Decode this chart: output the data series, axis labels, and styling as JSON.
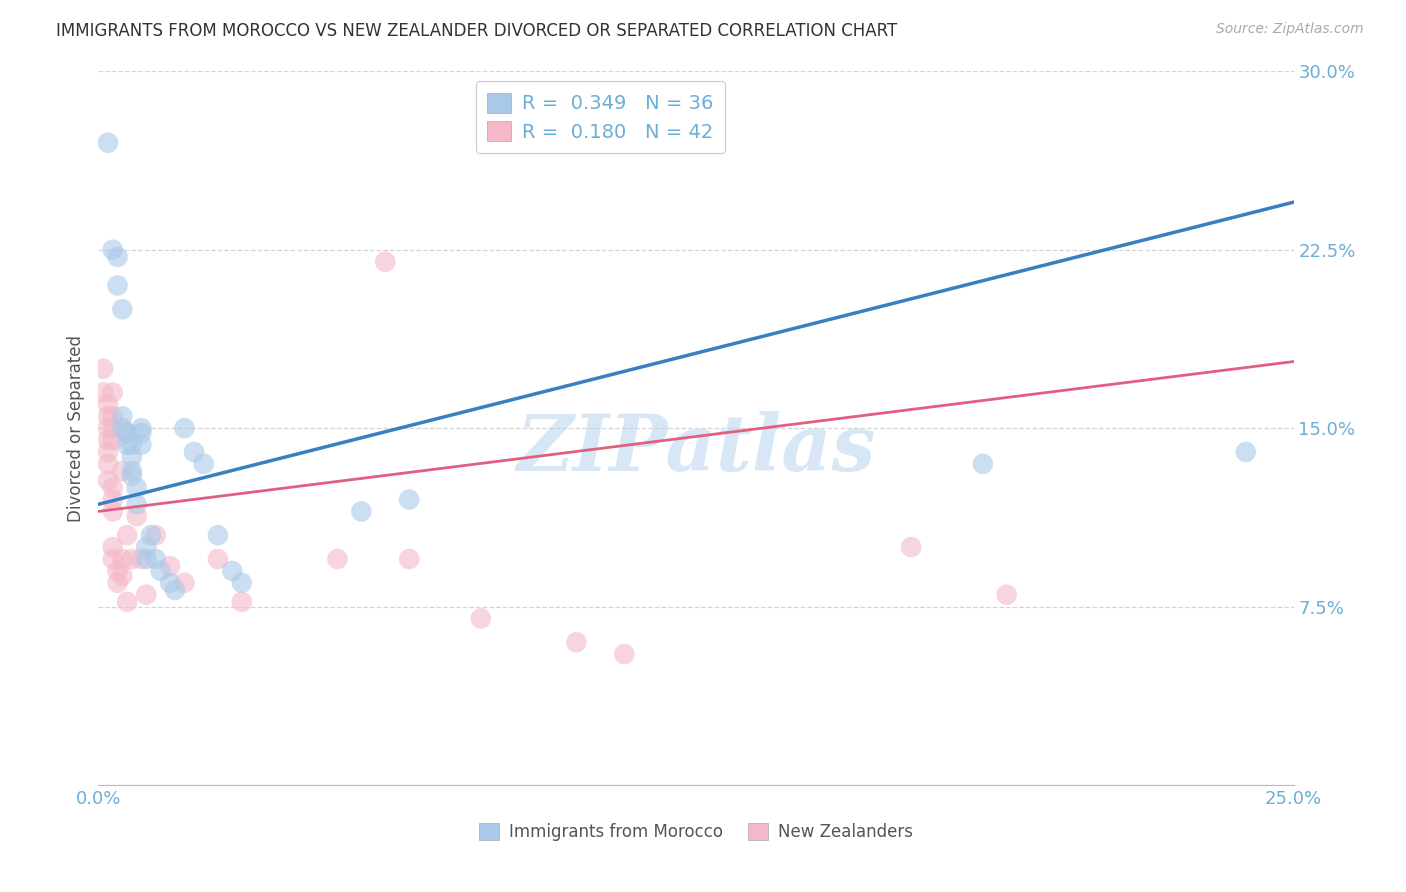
{
  "title": "IMMIGRANTS FROM MOROCCO VS NEW ZEALANDER DIVORCED OR SEPARATED CORRELATION CHART",
  "source": "Source: ZipAtlas.com",
  "ylabel_label": "Divorced or Separated",
  "xlim": [
    0.0,
    0.25
  ],
  "ylim": [
    0.0,
    0.3
  ],
  "xticks": [
    0.0,
    0.05,
    0.1,
    0.15,
    0.2,
    0.25
  ],
  "yticks": [
    0.0,
    0.075,
    0.15,
    0.225,
    0.3
  ],
  "background_color": "#ffffff",
  "grid_color": "#d0d0d0",
  "watermark": "ZIPatlas",
  "legend_entry1": {
    "R": "0.349",
    "N": "36"
  },
  "legend_entry2": {
    "R": "0.180",
    "N": "42"
  },
  "blue_color": "#aac9e8",
  "pink_color": "#f4b8c8",
  "blue_line_color": "#3a7fc1",
  "pink_line_color": "#e06080",
  "tick_color": "#6baed6",
  "blue_scatter": [
    [
      0.002,
      0.27
    ],
    [
      0.003,
      0.225
    ],
    [
      0.004,
      0.222
    ],
    [
      0.004,
      0.21
    ],
    [
      0.005,
      0.2
    ],
    [
      0.005,
      0.155
    ],
    [
      0.005,
      0.15
    ],
    [
      0.006,
      0.148
    ],
    [
      0.006,
      0.143
    ],
    [
      0.006,
      0.148
    ],
    [
      0.007,
      0.143
    ],
    [
      0.007,
      0.138
    ],
    [
      0.007,
      0.132
    ],
    [
      0.007,
      0.13
    ],
    [
      0.008,
      0.125
    ],
    [
      0.008,
      0.118
    ],
    [
      0.009,
      0.15
    ],
    [
      0.009,
      0.148
    ],
    [
      0.009,
      0.143
    ],
    [
      0.01,
      0.095
    ],
    [
      0.01,
      0.1
    ],
    [
      0.011,
      0.105
    ],
    [
      0.012,
      0.095
    ],
    [
      0.013,
      0.09
    ],
    [
      0.015,
      0.085
    ],
    [
      0.016,
      0.082
    ],
    [
      0.018,
      0.15
    ],
    [
      0.02,
      0.14
    ],
    [
      0.022,
      0.135
    ],
    [
      0.025,
      0.105
    ],
    [
      0.028,
      0.09
    ],
    [
      0.03,
      0.085
    ],
    [
      0.055,
      0.115
    ],
    [
      0.065,
      0.12
    ],
    [
      0.185,
      0.135
    ],
    [
      0.24,
      0.14
    ]
  ],
  "pink_scatter": [
    [
      0.001,
      0.175
    ],
    [
      0.001,
      0.165
    ],
    [
      0.002,
      0.16
    ],
    [
      0.002,
      0.155
    ],
    [
      0.002,
      0.15
    ],
    [
      0.002,
      0.145
    ],
    [
      0.002,
      0.14
    ],
    [
      0.002,
      0.135
    ],
    [
      0.002,
      0.128
    ],
    [
      0.003,
      0.165
    ],
    [
      0.003,
      0.155
    ],
    [
      0.003,
      0.15
    ],
    [
      0.003,
      0.145
    ],
    [
      0.003,
      0.125
    ],
    [
      0.003,
      0.12
    ],
    [
      0.003,
      0.115
    ],
    [
      0.003,
      0.1
    ],
    [
      0.003,
      0.095
    ],
    [
      0.004,
      0.09
    ],
    [
      0.004,
      0.085
    ],
    [
      0.005,
      0.132
    ],
    [
      0.005,
      0.095
    ],
    [
      0.005,
      0.088
    ],
    [
      0.006,
      0.105
    ],
    [
      0.006,
      0.077
    ],
    [
      0.007,
      0.095
    ],
    [
      0.008,
      0.113
    ],
    [
      0.009,
      0.095
    ],
    [
      0.01,
      0.08
    ],
    [
      0.012,
      0.105
    ],
    [
      0.015,
      0.092
    ],
    [
      0.018,
      0.085
    ],
    [
      0.025,
      0.095
    ],
    [
      0.03,
      0.077
    ],
    [
      0.05,
      0.095
    ],
    [
      0.06,
      0.22
    ],
    [
      0.065,
      0.095
    ],
    [
      0.08,
      0.07
    ],
    [
      0.1,
      0.06
    ],
    [
      0.11,
      0.055
    ],
    [
      0.17,
      0.1
    ],
    [
      0.19,
      0.08
    ]
  ],
  "blue_line": {
    "x0": 0.0,
    "y0": 0.118,
    "x1": 0.25,
    "y1": 0.245
  },
  "pink_line": {
    "x0": 0.0,
    "y0": 0.115,
    "x1": 0.25,
    "y1": 0.178
  }
}
